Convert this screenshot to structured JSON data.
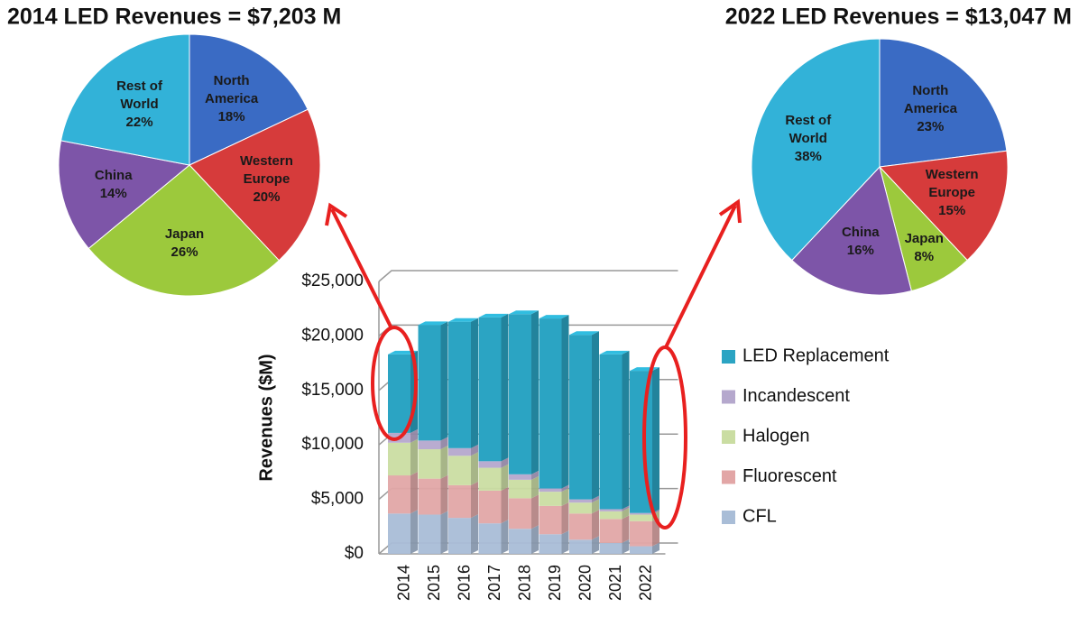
{
  "chart_data": [
    {
      "type": "pie",
      "title": "2014 LED Revenues = $7,203 M",
      "categories": [
        "North America",
        "Western Europe",
        "Japan",
        "China",
        "Rest of World"
      ],
      "values": [
        18,
        20,
        26,
        14,
        22
      ],
      "value_labels": [
        "18%",
        "20%",
        "26%",
        "14%",
        "22%"
      ],
      "colors": [
        "#3a6bc4",
        "#d63b3b",
        "#9cc93c",
        "#7d55a8",
        "#32b2d8"
      ]
    },
    {
      "type": "pie",
      "title": "2022 LED Revenues = $13,047 M",
      "categories": [
        "North America",
        "Western Europe",
        "Japan",
        "China",
        "Rest of World"
      ],
      "values": [
        23,
        15,
        8,
        16,
        38
      ],
      "value_labels": [
        "23%",
        "15%",
        "8%",
        "16%",
        "38%"
      ],
      "colors": [
        "#3a6bc4",
        "#d63b3b",
        "#9cc93c",
        "#7d55a8",
        "#32b2d8"
      ]
    },
    {
      "type": "stacked_bar",
      "y_label": "Revenues ($M)",
      "categories": [
        "2014",
        "2015",
        "2016",
        "2017",
        "2018",
        "2019",
        "2020",
        "2021",
        "2022"
      ],
      "series": [
        {
          "name": "CFL",
          "color": "#a9bdd7",
          "values": [
            3700,
            3600,
            3300,
            2800,
            2300,
            1800,
            1300,
            1000,
            700
          ]
        },
        {
          "name": "Fluorescent",
          "color": "#e2a6a6",
          "values": [
            3500,
            3300,
            3000,
            3000,
            2800,
            2600,
            2400,
            2200,
            2300
          ]
        },
        {
          "name": "Halogen",
          "color": "#cadda2",
          "values": [
            3000,
            2700,
            2700,
            2100,
            1700,
            1300,
            1000,
            700,
            600
          ]
        },
        {
          "name": "Incandescent",
          "color": "#b5a8cd",
          "values": [
            900,
            800,
            700,
            600,
            500,
            300,
            300,
            200,
            150
          ]
        },
        {
          "name": "LED Replacement",
          "color": "#2ba4c3",
          "values": [
            7200,
            10600,
            11600,
            13200,
            14700,
            15600,
            15100,
            14200,
            13047
          ]
        }
      ],
      "ylim": [
        0,
        25000
      ],
      "yticks": [
        {
          "value": 0,
          "label": "$0"
        },
        {
          "value": 5000,
          "label": "$5,000"
        },
        {
          "value": 10000,
          "label": "$10,000"
        },
        {
          "value": 15000,
          "label": "$15,000"
        },
        {
          "value": 20000,
          "label": "$20,000"
        },
        {
          "value": 25000,
          "label": "$25,000"
        }
      ],
      "grid": true
    }
  ]
}
